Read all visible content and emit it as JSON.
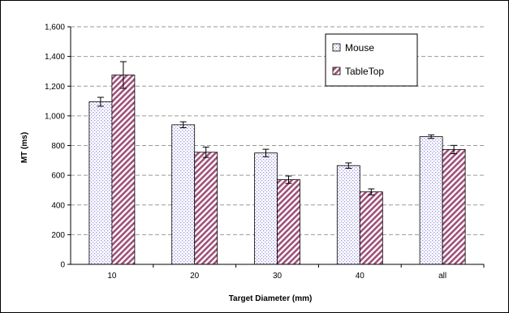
{
  "chart_data": {
    "type": "bar",
    "title": "",
    "xlabel": "Target Diameter (mm)",
    "ylabel": "MT (ms)",
    "categories": [
      "10",
      "20",
      "30",
      "40",
      "all"
    ],
    "ylim": [
      0,
      1600
    ],
    "yticks": [
      0,
      200,
      400,
      600,
      800,
      1000,
      1200,
      1400,
      1600
    ],
    "ytick_labels": [
      "0",
      "200",
      "400",
      "600",
      "800",
      "1,000",
      "1,200",
      "1,400",
      "1,600"
    ],
    "grid": "horizontal dashed",
    "legend_position": "top-right",
    "series": [
      {
        "name": "Mouse",
        "color": "#c9c5f0",
        "pattern": "dotted",
        "values": [
          1095,
          940,
          750,
          665,
          860
        ],
        "error": [
          30,
          20,
          25,
          18,
          12
        ]
      },
      {
        "name": "TableTop",
        "color": "#a0507a",
        "pattern": "diagonal-hatch",
        "values": [
          1275,
          755,
          570,
          488,
          773
        ],
        "error": [
          90,
          35,
          25,
          20,
          28
        ]
      }
    ]
  }
}
